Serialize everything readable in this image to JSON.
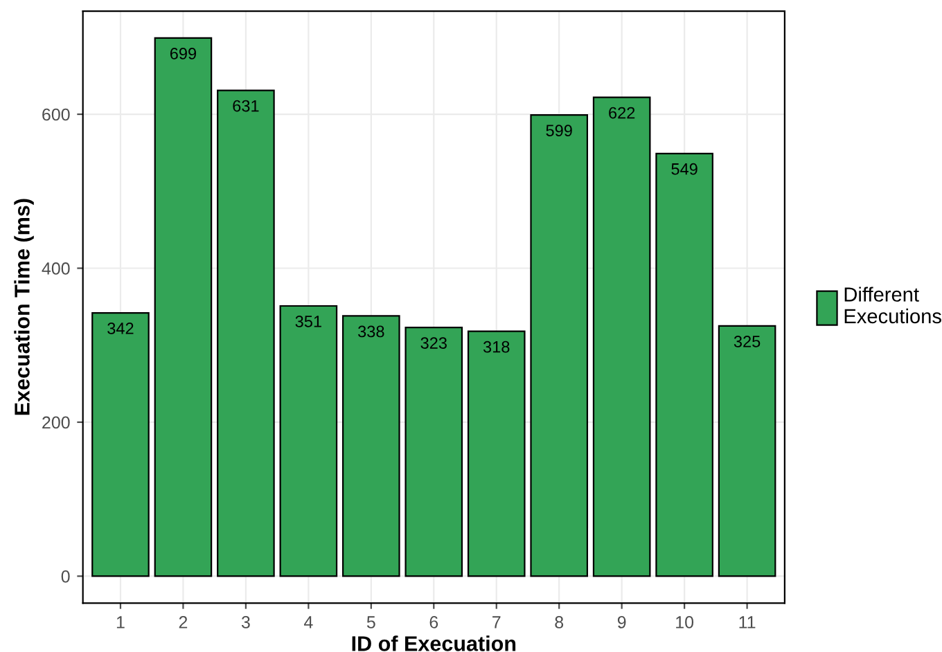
{
  "chart_data": {
    "type": "bar",
    "xlabel": "ID of Execuation",
    "ylabel": "Execuation Time (ms)",
    "categories": [
      "1",
      "2",
      "3",
      "4",
      "5",
      "6",
      "7",
      "8",
      "9",
      "10",
      "11"
    ],
    "series": [
      {
        "name": "Different\nExecutions",
        "color": "#33a456",
        "values": [
          342,
          699,
          631,
          351,
          338,
          323,
          318,
          599,
          622,
          549,
          325
        ]
      }
    ],
    "ylim": [
      -35,
      734
    ],
    "yticks": [
      0,
      200,
      400,
      600
    ],
    "grid": true,
    "legend": "right",
    "data_labels": true
  }
}
